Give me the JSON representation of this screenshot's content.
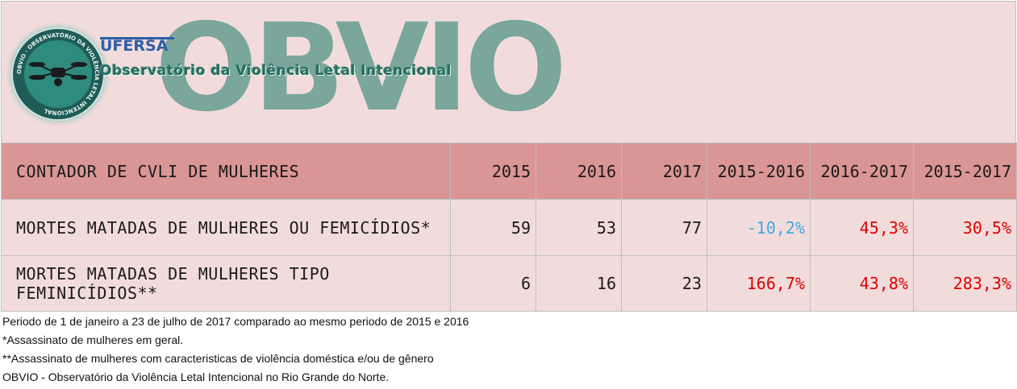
{
  "header": {
    "logo_ring_text": "OBVIO · OBSERVATÓRIO DA VIOLÊNCIA LETAL INTENCIONAL",
    "brand_big": "OBVIO",
    "university": "UFERSA",
    "subtitle": "Observatório da Violência Letal Intencional"
  },
  "table": {
    "header": [
      "CONTADOR DE CVLI DE MULHERES",
      "2015",
      "2016",
      "2017",
      "2015-2016",
      "2016-2017",
      "2015-2017"
    ],
    "rows": [
      {
        "label": "MORTES MATADAS DE MULHERES OU FEMICÍDIOS*",
        "v2015": "59",
        "v2016": "53",
        "v2017": "77",
        "c1516": "-10,2%",
        "c1617": "45,3%",
        "c1517": "30,5%"
      },
      {
        "label": "MORTES MATADAS DE MULHERES TIPO FEMINICÍDIOS**",
        "v2015": "6",
        "v2016": "16",
        "v2017": "23",
        "c1516": "166,7%",
        "c1617": "43,8%",
        "c1517": "283,3%"
      }
    ]
  },
  "notes": [
    "Periodo de 1 de janeiro a 23 de julho de 2017 comparado ao mesmo periodo de 2015 e 2016",
    "*Assassinato de mulheres em geral.",
    "**Assassinato de mulheres com caracteristicas de violência doméstica e/ou de gênero",
    "OBVIO - Observatório da Violência Letal Intencional no Rio Grande do Norte."
  ],
  "colors": {
    "negative": "#3da8e6",
    "positive": "#e00000",
    "header_row": "#da9694",
    "body_row": "#f2dcdb"
  }
}
